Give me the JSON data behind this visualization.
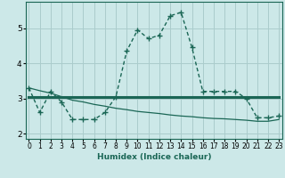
{
  "xlabel": "Humidex (Indice chaleur)",
  "x": [
    0,
    1,
    2,
    3,
    4,
    5,
    6,
    7,
    8,
    9,
    10,
    11,
    12,
    13,
    14,
    15,
    16,
    17,
    18,
    19,
    20,
    21,
    22,
    23
  ],
  "line1": [
    3.3,
    2.6,
    3.2,
    2.9,
    2.4,
    2.4,
    2.4,
    2.6,
    3.05,
    4.35,
    4.95,
    4.7,
    4.8,
    5.35,
    5.45,
    4.45,
    3.2,
    3.2,
    3.2,
    3.2,
    3.0,
    2.45,
    2.45,
    2.5
  ],
  "line2": [
    3.05,
    3.05,
    3.05,
    3.05,
    3.05,
    3.05,
    3.05,
    3.05,
    3.05,
    3.05,
    3.05,
    3.05,
    3.05,
    3.05,
    3.05,
    3.05,
    3.05,
    3.05,
    3.05,
    3.05,
    3.05,
    3.05,
    3.05,
    3.05
  ],
  "line3": [
    3.3,
    3.22,
    3.15,
    3.05,
    2.95,
    2.9,
    2.83,
    2.78,
    2.72,
    2.68,
    2.63,
    2.6,
    2.57,
    2.53,
    2.5,
    2.48,
    2.45,
    2.43,
    2.42,
    2.4,
    2.38,
    2.35,
    2.35,
    2.4
  ],
  "bg_color": "#cce8e8",
  "grid_color": "#aacccc",
  "line_color": "#1a6655",
  "ylim": [
    1.85,
    5.75
  ],
  "xlim": [
    -0.3,
    23.3
  ],
  "yticks": [
    2,
    3,
    4,
    5
  ],
  "xticks": [
    0,
    1,
    2,
    3,
    4,
    5,
    6,
    7,
    8,
    9,
    10,
    11,
    12,
    13,
    14,
    15,
    16,
    17,
    18,
    19,
    20,
    21,
    22,
    23
  ],
  "tick_fontsize": 5.5,
  "xlabel_fontsize": 6.5
}
